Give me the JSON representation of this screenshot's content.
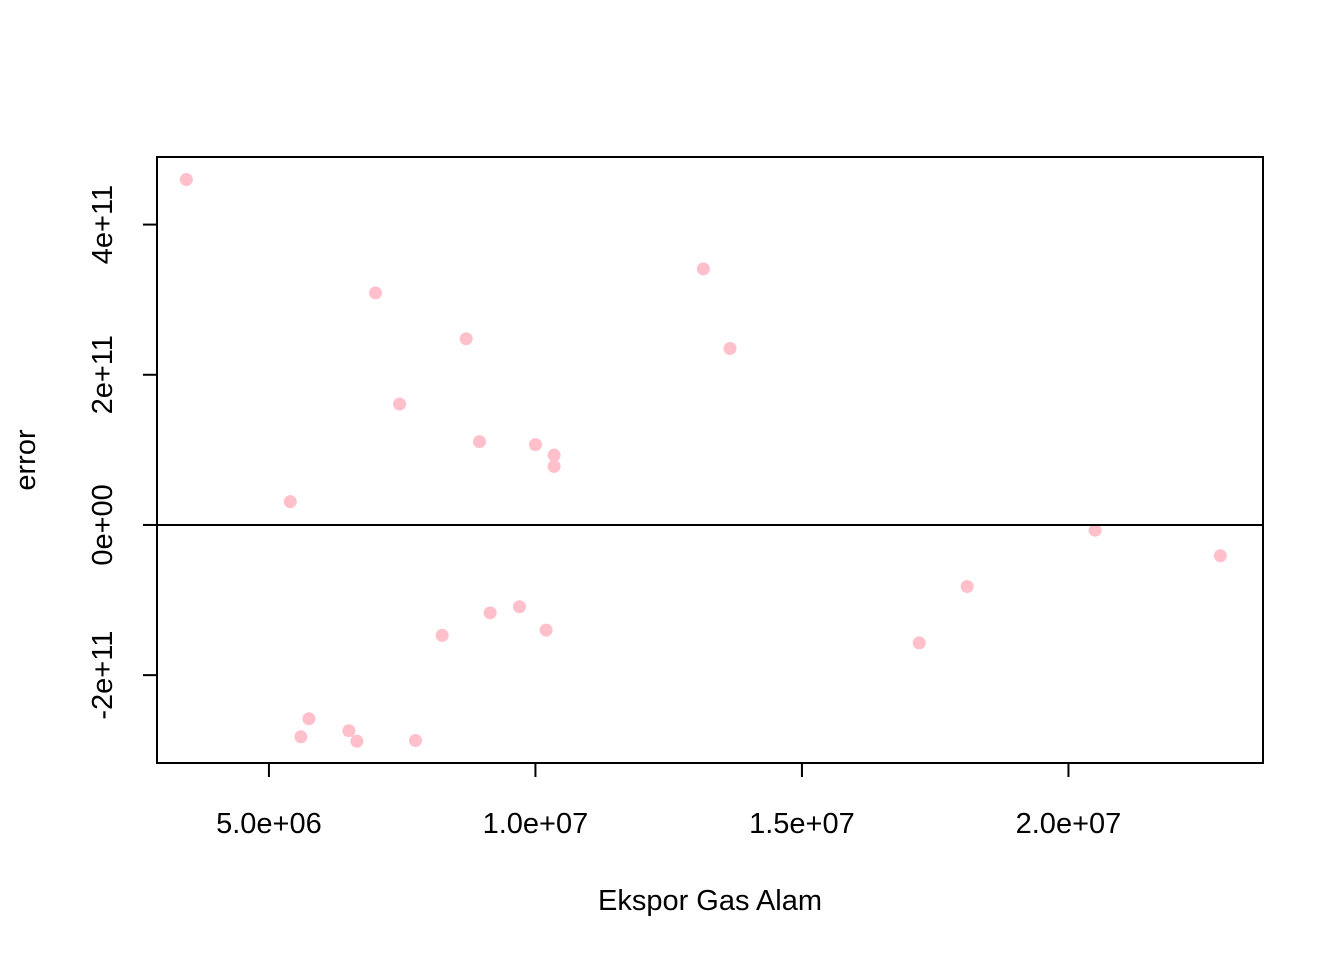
{
  "chart_data": {
    "type": "scatter",
    "title": "",
    "xlabel": "Ekspor Gas Alam",
    "ylabel": "error",
    "xlim": [
      2900000,
      23650000
    ],
    "ylim": [
      -317000000000,
      490000000000
    ],
    "x_ticks": [
      {
        "value": 5000000,
        "label": "5.0e+06"
      },
      {
        "value": 10000000,
        "label": "1.0e+07"
      },
      {
        "value": 15000000,
        "label": "1.5e+07"
      },
      {
        "value": 20000000,
        "label": "2.0e+07"
      }
    ],
    "y_ticks": [
      {
        "value": -200000000000,
        "label": "-2e+11"
      },
      {
        "value": 0,
        "label": "0e+00"
      },
      {
        "value": 200000000000,
        "label": "2e+11"
      },
      {
        "value": 400000000000,
        "label": "4e+11"
      }
    ],
    "reference_line": {
      "y": 0
    },
    "grid": false,
    "point_color": "#ffc0cb",
    "points": [
      {
        "x": 3450000,
        "y": 460000000000
      },
      {
        "x": 5400000,
        "y": 31000000000
      },
      {
        "x": 5600000,
        "y": -282000000000
      },
      {
        "x": 5750000,
        "y": -258000000000
      },
      {
        "x": 6500000,
        "y": -274000000000
      },
      {
        "x": 6650000,
        "y": -288000000000
      },
      {
        "x": 7000000,
        "y": 309000000000
      },
      {
        "x": 7450000,
        "y": 161000000000
      },
      {
        "x": 7750000,
        "y": -287000000000
      },
      {
        "x": 8250000,
        "y": -147000000000
      },
      {
        "x": 8700000,
        "y": 248000000000
      },
      {
        "x": 8950000,
        "y": 111000000000
      },
      {
        "x": 9150000,
        "y": -117000000000
      },
      {
        "x": 9700000,
        "y": -109000000000
      },
      {
        "x": 10000000,
        "y": 107000000000
      },
      {
        "x": 10200000,
        "y": -140000000000
      },
      {
        "x": 10350000,
        "y": 93000000000
      },
      {
        "x": 10350000,
        "y": 78000000000
      },
      {
        "x": 13150000,
        "y": 341000000000
      },
      {
        "x": 13650000,
        "y": 235000000000
      },
      {
        "x": 17200000,
        "y": -157000000000
      },
      {
        "x": 18100000,
        "y": -82000000000
      },
      {
        "x": 20500000,
        "y": -7000000000
      },
      {
        "x": 22850000,
        "y": -41000000000
      }
    ]
  }
}
